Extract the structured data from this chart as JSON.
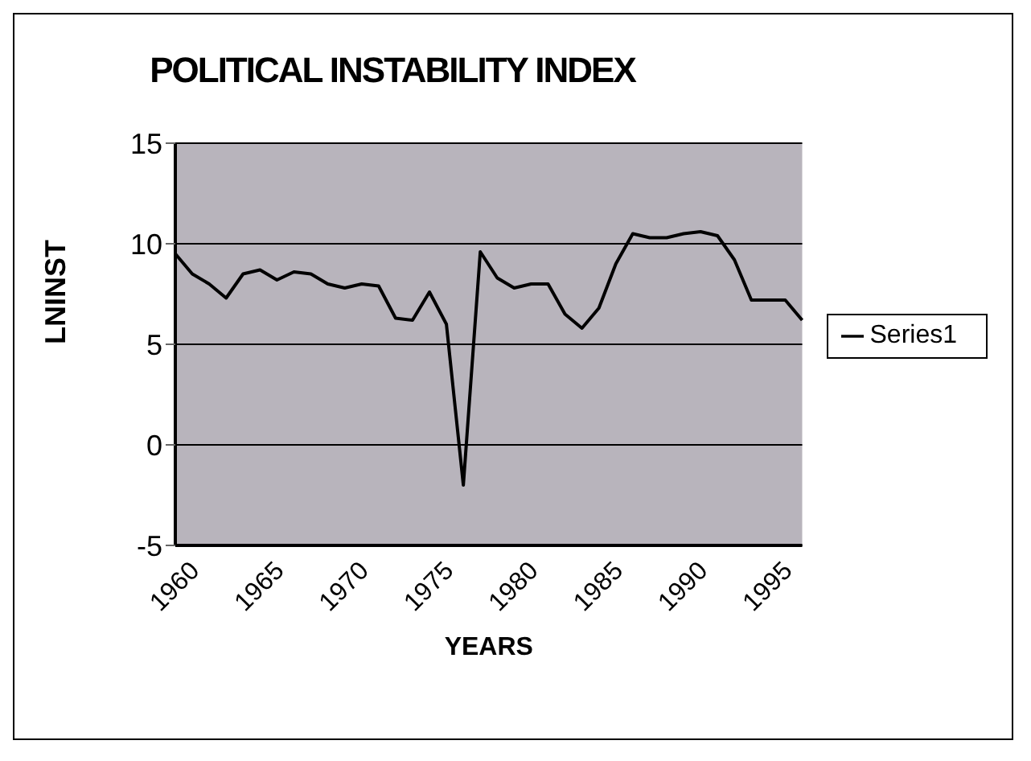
{
  "chart_data": {
    "type": "line",
    "title": "POLITICAL INSTABILITY INDEX",
    "xlabel": "YEARS",
    "ylabel": "LNINST",
    "categories": [
      "1960",
      null,
      null,
      null,
      null,
      "1965",
      null,
      null,
      null,
      null,
      "1970",
      null,
      null,
      null,
      null,
      "1975",
      null,
      null,
      null,
      null,
      "1980",
      null,
      null,
      null,
      null,
      "1985",
      null,
      null,
      null,
      null,
      "1990",
      null,
      null,
      null,
      null,
      "1995",
      null,
      null
    ],
    "series": [
      {
        "name": "Series1",
        "color": "#000000",
        "values": [
          9.5,
          8.5,
          8.0,
          7.3,
          8.5,
          8.7,
          8.2,
          8.6,
          8.5,
          8.0,
          7.8,
          8.0,
          7.9,
          6.3,
          6.2,
          7.6,
          6.0,
          -2.0,
          9.6,
          8.3,
          7.8,
          8.0,
          8.0,
          6.5,
          5.8,
          6.8,
          9.0,
          10.5,
          10.3,
          10.3,
          10.5,
          10.6,
          10.4,
          9.2,
          7.2,
          7.2,
          7.2,
          6.2
        ]
      }
    ],
    "ylim": [
      -5,
      15
    ],
    "yticks": [
      -5,
      0,
      5,
      10,
      15
    ],
    "grid": "y",
    "legend": "right",
    "marker": "none",
    "line_style": "solid"
  }
}
